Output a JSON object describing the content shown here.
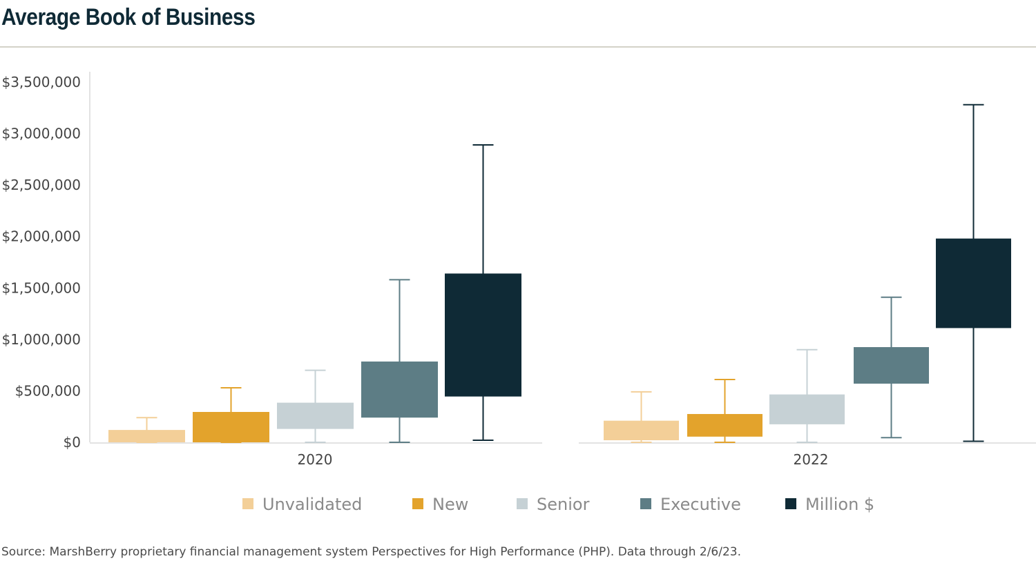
{
  "title": "Average Book of Business",
  "source": "Source: MarshBerry proprietary financial management system Perspectives for High Performance (PHP). Data through 2/6/23.",
  "chart_data": {
    "type": "boxplot",
    "title": "Average Book of Business",
    "xlabel": "",
    "ylabel": "",
    "ylim": [
      0,
      3500000
    ],
    "y_ticks": [
      0,
      500000,
      1000000,
      1500000,
      2000000,
      2500000,
      3000000,
      3500000
    ],
    "y_tick_labels": [
      "$0",
      "$500,000",
      "$1,000,000",
      "$1,500,000",
      "$2,000,000",
      "$2,500,000",
      "$3,000,000",
      "$3,500,000"
    ],
    "categories": [
      "2020",
      "2022"
    ],
    "legend_position": "bottom",
    "series": [
      {
        "name": "Unvalidated",
        "color": "#f3cf98",
        "values": [
          {
            "min": 0,
            "q1": 0,
            "q3": 120000,
            "max": 240000
          },
          {
            "min": 0,
            "q1": 20000,
            "q3": 210000,
            "max": 490000
          }
        ]
      },
      {
        "name": "New",
        "color": "#e3a32c",
        "values": [
          {
            "min": 0,
            "q1": 0,
            "q3": 295000,
            "max": 530000
          },
          {
            "min": 0,
            "q1": 55000,
            "q3": 275000,
            "max": 610000
          }
        ]
      },
      {
        "name": "Senior",
        "color": "#c6d1d5",
        "values": [
          {
            "min": 0,
            "q1": 130000,
            "q3": 385000,
            "max": 700000
          },
          {
            "min": 0,
            "q1": 175000,
            "q3": 465000,
            "max": 900000
          }
        ]
      },
      {
        "name": "Executive",
        "color": "#5d7d85",
        "values": [
          {
            "min": 0,
            "q1": 240000,
            "q3": 785000,
            "max": 1580000
          },
          {
            "min": 45000,
            "q1": 570000,
            "q3": 925000,
            "max": 1410000
          }
        ]
      },
      {
        "name": "Million $",
        "color": "#0f2a36",
        "values": [
          {
            "min": 20000,
            "q1": 445000,
            "q3": 1640000,
            "max": 2890000
          },
          {
            "min": 10000,
            "q1": 1110000,
            "q3": 1980000,
            "max": 3280000
          }
        ]
      }
    ]
  }
}
